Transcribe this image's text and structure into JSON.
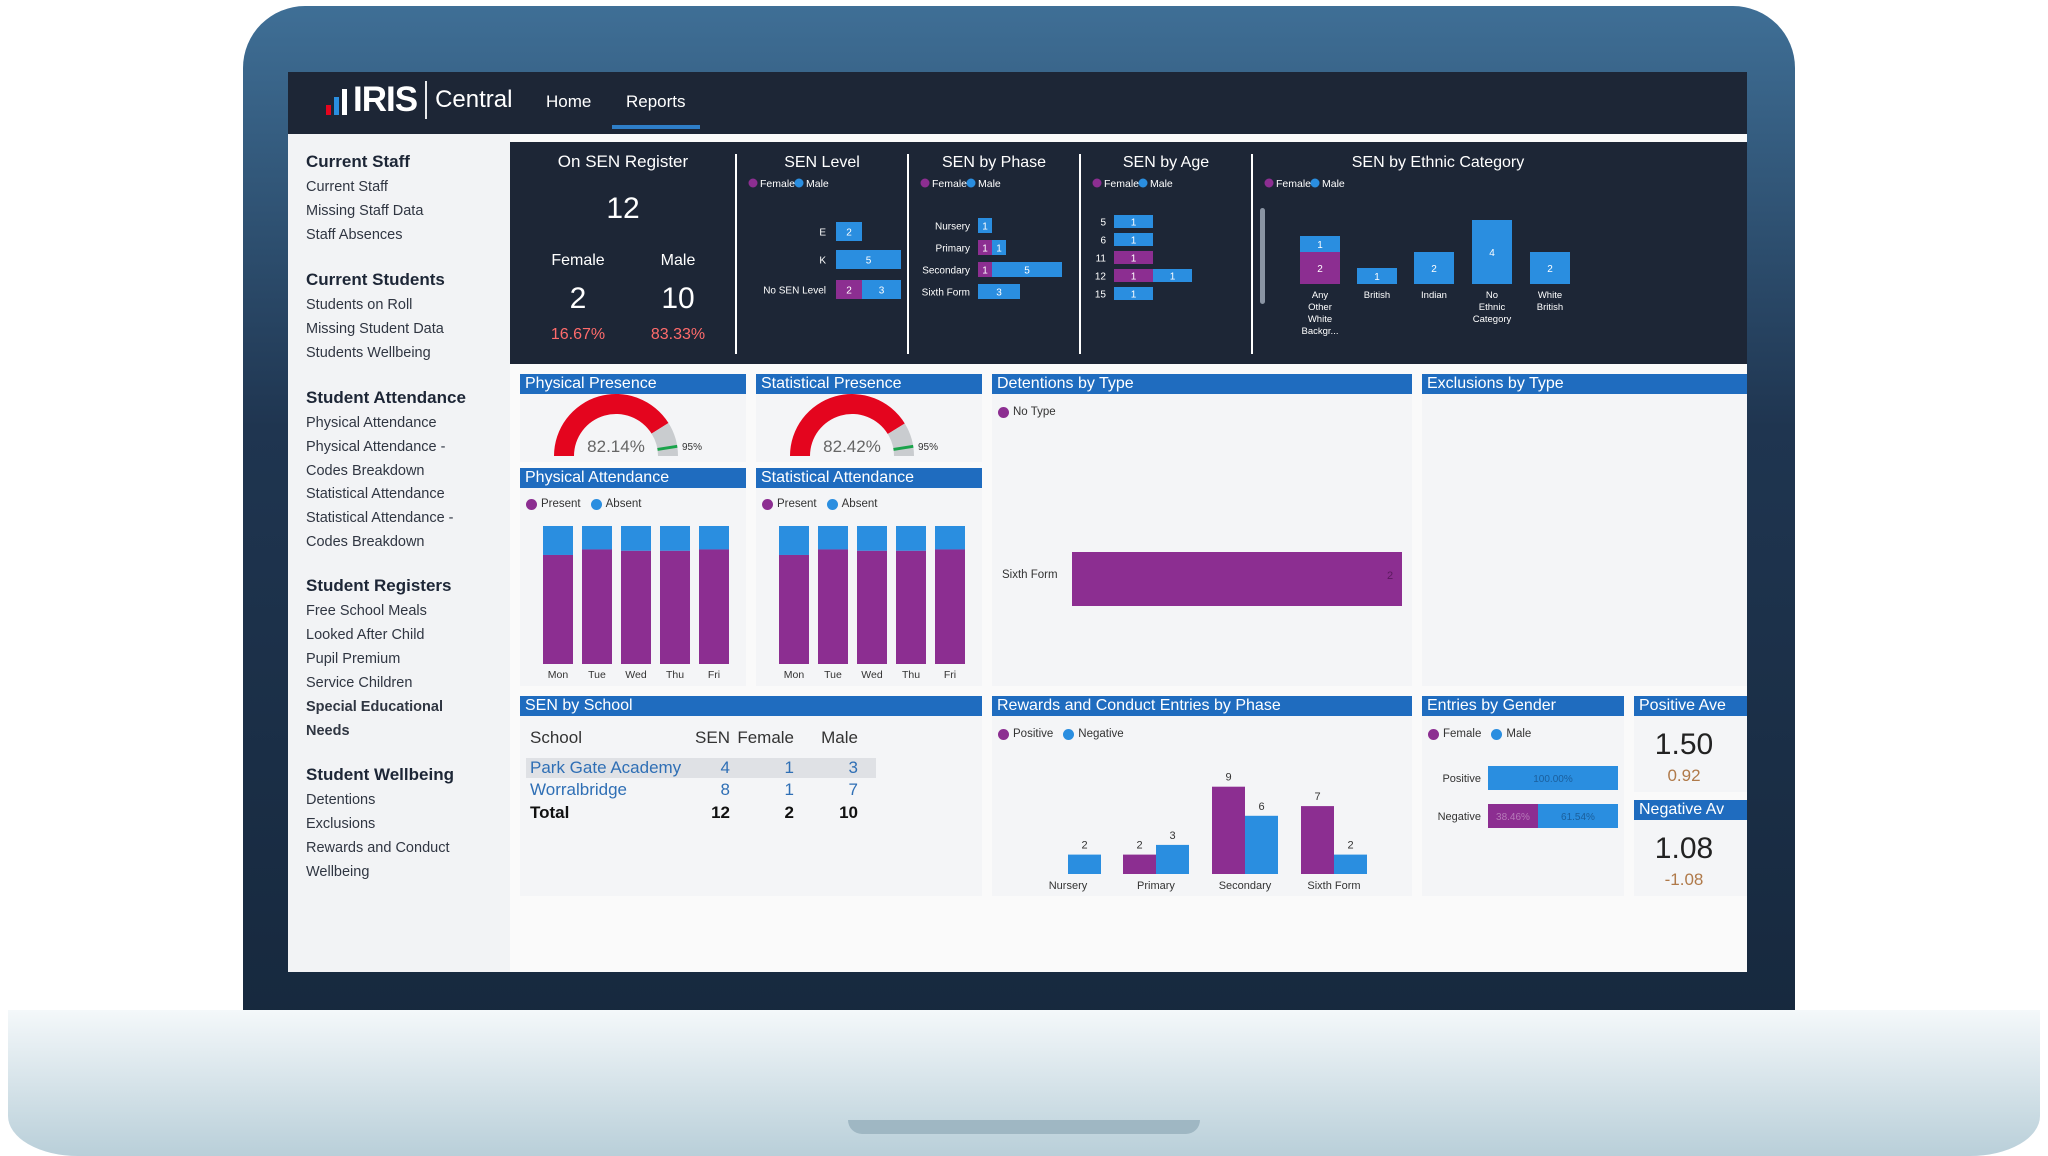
{
  "nav": {
    "logo_text": "IRIS",
    "logo_sub": "Central",
    "home": "Home",
    "reports": "Reports"
  },
  "colors": {
    "female": "#8c2e91",
    "male": "#2a8ee0",
    "accent": "#1f6cbf",
    "dark": "#1d2636",
    "gauge": "#e4051e"
  },
  "sidebar": {
    "groups": [
      {
        "title": "Current Staff",
        "items": [
          "Current Staff",
          "Missing Staff Data",
          "Staff Absences"
        ]
      },
      {
        "title": "Current Students",
        "items": [
          "Students on Roll",
          "Missing Student Data",
          "Students Wellbeing"
        ]
      },
      {
        "title": "Student Attendance",
        "items": [
          "Physical Attendance",
          "Physical Attendance -",
          "Codes Breakdown",
          "Statistical Attendance",
          "Statistical Attendance -",
          "Codes Breakdown"
        ]
      },
      {
        "title": "Student Registers",
        "items": [
          "Free School Meals",
          "Looked After Child",
          "Pupil Premium",
          "Service Children",
          "Special Educational",
          "Needs"
        ]
      },
      {
        "title": "Student Wellbeing",
        "items": [
          "Detentions",
          "Exclusions",
          "Rewards and Conduct",
          "Wellbeing"
        ]
      }
    ]
  },
  "sen_register": {
    "title": "On SEN Register",
    "total": "12",
    "female_label": "Female",
    "male_label": "Male",
    "female": "2",
    "male": "10",
    "female_pct": "16.67%",
    "male_pct": "83.33%"
  },
  "legend": {
    "female": "Female",
    "male": "Male",
    "present": "Present",
    "absent": "Absent",
    "positive": "Positive",
    "negative": "Negative",
    "no_type": "No Type"
  },
  "sen_level": {
    "title": "SEN Level",
    "rows": [
      {
        "label": "E",
        "female": 0,
        "male": 2
      },
      {
        "label": "K",
        "female": 0,
        "male": 5
      },
      {
        "label": "No SEN Level",
        "female": 2,
        "male": 3
      }
    ]
  },
  "sen_phase": {
    "title": "SEN by Phase",
    "rows": [
      {
        "label": "Nursery",
        "female": 0,
        "male": 1
      },
      {
        "label": "Primary",
        "female": 1,
        "male": 1
      },
      {
        "label": "Secondary",
        "female": 1,
        "male": 5
      },
      {
        "label": "Sixth Form",
        "female": 0,
        "male": 3
      }
    ]
  },
  "sen_age": {
    "title": "SEN by Age",
    "rows": [
      {
        "label": "5",
        "female": 0,
        "male": 1
      },
      {
        "label": "6",
        "female": 0,
        "male": 1
      },
      {
        "label": "11",
        "female": 1,
        "male": 0
      },
      {
        "label": "12",
        "female": 1,
        "male": 1
      },
      {
        "label": "15",
        "female": 0,
        "male": 1
      }
    ]
  },
  "sen_ethnic": {
    "title": "SEN by Ethnic Category",
    "cols": [
      {
        "label": [
          "Any",
          "Other",
          "White",
          "Backgr..."
        ],
        "female": 2,
        "male": 1
      },
      {
        "label": [
          "British"
        ],
        "female": 0,
        "male": 1
      },
      {
        "label": [
          "Indian"
        ],
        "female": 0,
        "male": 2
      },
      {
        "label": [
          "No",
          "Ethnic",
          "Category"
        ],
        "female": 0,
        "male": 4
      },
      {
        "label": [
          "White",
          "British"
        ],
        "female": 0,
        "male": 2
      }
    ]
  },
  "physical_presence": {
    "title": "Physical Presence",
    "value": "82.14%",
    "target": "95%",
    "fraction": 0.8214
  },
  "statistical_presence": {
    "title": "Statistical Presence",
    "value": "82.42%",
    "target": "95%",
    "fraction": 0.8242
  },
  "physical_attendance": {
    "title": "Physical Attendance",
    "days": [
      "Mon",
      "Tue",
      "Wed",
      "Thu",
      "Fri"
    ],
    "present": [
      0.79,
      0.83,
      0.82,
      0.82,
      0.83
    ]
  },
  "statistical_attendance": {
    "title": "Statistical Attendance",
    "days": [
      "Mon",
      "Tue",
      "Wed",
      "Thu",
      "Fri"
    ],
    "present": [
      0.79,
      0.83,
      0.82,
      0.82,
      0.83
    ]
  },
  "detentions": {
    "title": "Detentions by Type",
    "row_label": "Sixth Form",
    "value": "2"
  },
  "exclusions": {
    "title": "Exclusions by Type"
  },
  "sen_school": {
    "title": "SEN by School",
    "headers": [
      "School",
      "SEN",
      "Female",
      "Male"
    ],
    "rows": [
      [
        "Park Gate Academy",
        "4",
        "1",
        "3"
      ],
      [
        "Worralbridge",
        "8",
        "1",
        "7"
      ]
    ],
    "total": [
      "Total",
      "12",
      "2",
      "10"
    ]
  },
  "rewards": {
    "title": "Rewards and Conduct Entries by Phase",
    "categories": [
      "Nursery",
      "Primary",
      "Secondary",
      "Sixth Form"
    ],
    "positive": [
      0,
      2,
      9,
      7
    ],
    "negative": [
      2,
      3,
      6,
      2
    ]
  },
  "entries_gender": {
    "title": "Entries by Gender",
    "rows": [
      {
        "label": "Positive",
        "female": "",
        "male": "100.00%",
        "female_frac": 0,
        "male_frac": 1
      },
      {
        "label": "Negative",
        "female": "38.46%",
        "male": "61.54%",
        "female_frac": 0.3846,
        "male_frac": 0.6154
      }
    ]
  },
  "positive_avg": {
    "title": "Positive Ave",
    "value": "1.50",
    "sub": "0.92"
  },
  "negative_avg": {
    "title": "Negative Av",
    "value": "1.08",
    "sub": "-1.08"
  }
}
